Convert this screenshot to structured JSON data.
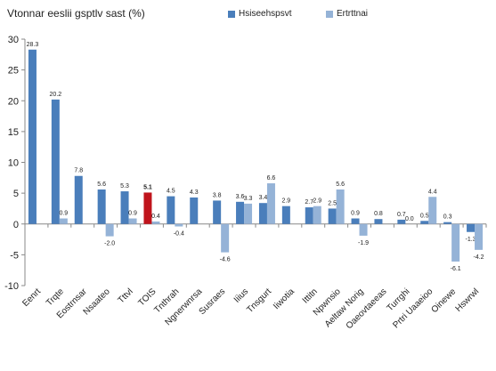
{
  "chart_data": {
    "type": "bar",
    "title": "Vtonnar eeslii gsptlv sast (%)",
    "ylim": [
      -10,
      30
    ],
    "yticks": [
      -10,
      -5,
      0,
      5,
      10,
      15,
      20,
      25,
      30
    ],
    "grid": false,
    "legend_position": "top-right",
    "categories": [
      "Eenrt",
      "Trqte",
      "Eostrnsar",
      "Nsaateo",
      "Tttvl",
      "TOIS",
      "Tnthrah",
      "Ngnerwnrsa",
      "Susraes",
      "Iiius",
      "Tnsgurt",
      "Iiwotia",
      "Ittitn",
      "Npwnsio",
      "Aeltaw Norig",
      "Oaeovtaeeas",
      "Turrghi",
      "Prtri Uaaeioo",
      "Oinewe",
      "Hswrwl"
    ],
    "series": [
      {
        "name": "Hsiseehspsvt",
        "color": "#4a7ebb",
        "values": [
          28.3,
          20.2,
          7.8,
          5.6,
          5.3,
          5.1,
          4.5,
          4.3,
          3.8,
          3.6,
          3.4,
          2.9,
          2.7,
          2.5,
          0.9,
          0.8,
          0.7,
          0.5,
          0.3,
          -1.3
        ],
        "highlight_index": 5,
        "highlight_color": "#c0141c"
      },
      {
        "name": "Ertrttnai",
        "color": "#95b3d7",
        "values": [
          null,
          0.9,
          null,
          -2.0,
          0.9,
          0.4,
          -0.4,
          null,
          -4.6,
          3.3,
          6.6,
          null,
          2.9,
          5.6,
          -1.9,
          null,
          0.0,
          4.4,
          -6.1,
          -4.2
        ]
      }
    ]
  }
}
